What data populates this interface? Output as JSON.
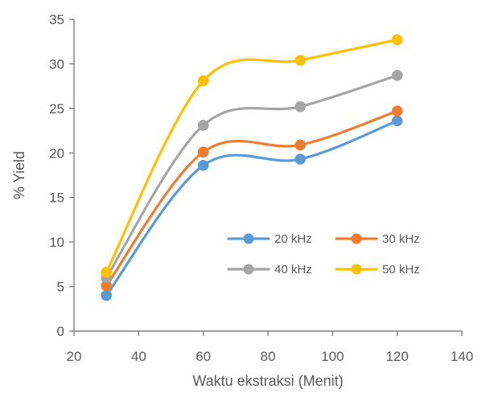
{
  "chart_data": {
    "type": "line",
    "xlabel": "Waktu ekstraksi (Menit)",
    "ylabel": "% Yield",
    "xlim": [
      20,
      140
    ],
    "ylim": [
      0,
      35
    ],
    "xticks": [
      20,
      40,
      60,
      80,
      100,
      120,
      140
    ],
    "yticks": [
      0,
      5,
      10,
      15,
      20,
      25,
      30,
      35
    ],
    "x": [
      30,
      60,
      90,
      120
    ],
    "grid": false,
    "smooth": true,
    "legend_position": "inside-right",
    "series": [
      {
        "name": "20 kHz",
        "values": [
          4.0,
          18.6,
          19.3,
          23.6
        ],
        "color": "#5B9BD5"
      },
      {
        "name": "30 kHz",
        "values": [
          5.1,
          20.1,
          20.9,
          24.7
        ],
        "color": "#ED7D31"
      },
      {
        "name": "40 kHz",
        "values": [
          6.0,
          23.1,
          25.2,
          28.7
        ],
        "color": "#A5A5A5"
      },
      {
        "name": "50 kHz",
        "values": [
          6.6,
          28.1,
          30.4,
          32.7
        ],
        "color": "#FFC000"
      }
    ]
  }
}
